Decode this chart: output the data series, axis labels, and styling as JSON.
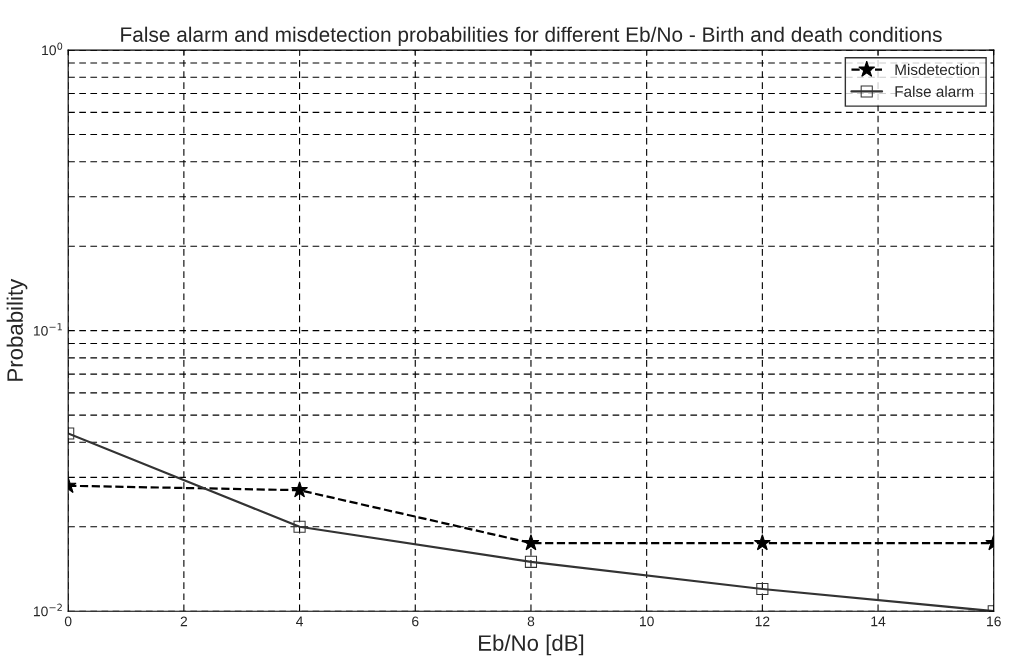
{
  "chart_data": {
    "type": "line",
    "title": "False alarm and misdetection probabilities for different Eb/No - Birth and death conditions",
    "xlabel": "Eb/No [dB]",
    "ylabel": "Probability",
    "x": [
      0,
      4,
      8,
      12,
      16
    ],
    "series": [
      {
        "name": "Misdetection",
        "color": "#000000",
        "marker": "star",
        "line_style": "dashed",
        "values": [
          0.028,
          0.027,
          0.0175,
          0.0175,
          0.0175
        ]
      },
      {
        "name": "False alarm",
        "color": "#333333",
        "marker": "square",
        "line_style": "solid",
        "values": [
          0.043,
          0.02,
          0.015,
          0.012,
          0.01
        ]
      }
    ],
    "log": "y",
    "xlim": [
      0,
      16
    ],
    "xticks": [
      0,
      2,
      4,
      6,
      8,
      10,
      12,
      14,
      16
    ],
    "ylim": [
      0.01,
      1
    ],
    "yticks": [
      {
        "value": 0.01,
        "label": "10$^{−2}$"
      },
      {
        "value": 0.1,
        "label": "10$^{−1}$"
      },
      {
        "value": 1,
        "label": "10$^{0}$"
      }
    ],
    "grid": true,
    "legend": "top right"
  }
}
